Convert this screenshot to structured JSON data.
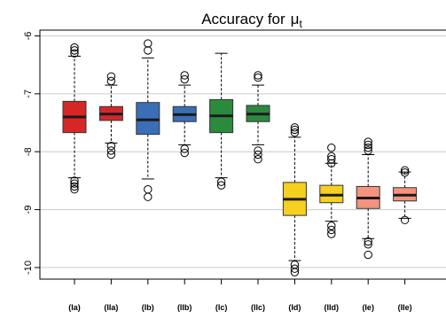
{
  "chart_data": {
    "type": "boxplot",
    "title": "Accuracy for",
    "title_symbol": "μ",
    "title_subscript": "t",
    "xlabel": "",
    "ylabel": "",
    "ylim": [
      -10.2,
      -5.9
    ],
    "y_ticks": [
      -6,
      -7,
      -8,
      -9,
      -10
    ],
    "grid": true,
    "categories": [
      "(Ia)",
      "(IIa)",
      "(Ib)",
      "(IIb)",
      "(Ic)",
      "(IIc)",
      "(Id)",
      "(IId)",
      "(Ie)",
      "(IIe)"
    ],
    "boxes": [
      {
        "color": "#D62728",
        "q1": -7.67,
        "median": -7.4,
        "q3": -7.13,
        "whisker_low": -8.45,
        "whisker_high": -6.35,
        "outliers": [
          -6.2,
          -6.25,
          -6.3,
          -8.5,
          -8.55,
          -8.6,
          -8.65
        ]
      },
      {
        "color": "#D62728",
        "q1": -7.46,
        "median": -7.35,
        "q3": -7.22,
        "whisker_low": -7.85,
        "whisker_high": -6.85,
        "outliers": [
          -6.7,
          -6.78,
          -7.9,
          -7.98,
          -8.05
        ]
      },
      {
        "color": "#3A6FB5",
        "q1": -7.7,
        "median": -7.45,
        "q3": -7.15,
        "whisker_low": -8.47,
        "whisker_high": -6.38,
        "outliers": [
          -6.13,
          -6.25,
          -8.65,
          -8.78
        ]
      },
      {
        "color": "#3A6FB5",
        "q1": -7.48,
        "median": -7.36,
        "q3": -7.22,
        "whisker_low": -7.88,
        "whisker_high": -6.85,
        "outliers": [
          -6.68,
          -6.75,
          -7.95,
          -8.02
        ]
      },
      {
        "color": "#2B8A3E",
        "q1": -7.67,
        "median": -7.38,
        "q3": -7.1,
        "whisker_low": -8.45,
        "whisker_high": -6.3,
        "outliers": [
          -8.52,
          -8.58
        ]
      },
      {
        "color": "#2B8A3E",
        "q1": -7.48,
        "median": -7.35,
        "q3": -7.2,
        "whisker_low": -7.88,
        "whisker_high": -6.85,
        "outliers": [
          -6.68,
          -6.72,
          -7.98,
          -8.05,
          -8.13
        ]
      },
      {
        "color": "#F5D020",
        "q1": -9.1,
        "median": -8.82,
        "q3": -8.53,
        "whisker_low": -9.88,
        "whisker_high": -7.75,
        "outliers": [
          -7.58,
          -7.62,
          -7.67,
          -9.95,
          -10.02,
          -10.08
        ]
      },
      {
        "color": "#F5D020",
        "q1": -8.88,
        "median": -8.75,
        "q3": -8.58,
        "whisker_low": -9.2,
        "whisker_high": -8.2,
        "outliers": [
          -7.93,
          -8.08,
          -8.13,
          -8.2,
          -9.28,
          -9.35,
          -9.42
        ]
      },
      {
        "color": "#F4937E",
        "q1": -8.98,
        "median": -8.8,
        "q3": -8.6,
        "whisker_low": -9.5,
        "whisker_high": -8.05,
        "outliers": [
          -7.83,
          -7.88,
          -7.93,
          -7.98,
          -9.55,
          -9.6,
          -9.78
        ]
      },
      {
        "color": "#F4937E",
        "q1": -8.85,
        "median": -8.75,
        "q3": -8.62,
        "whisker_low": -9.15,
        "whisker_high": -8.35,
        "outliers": [
          -8.32,
          -8.36,
          -9.18
        ]
      }
    ]
  }
}
